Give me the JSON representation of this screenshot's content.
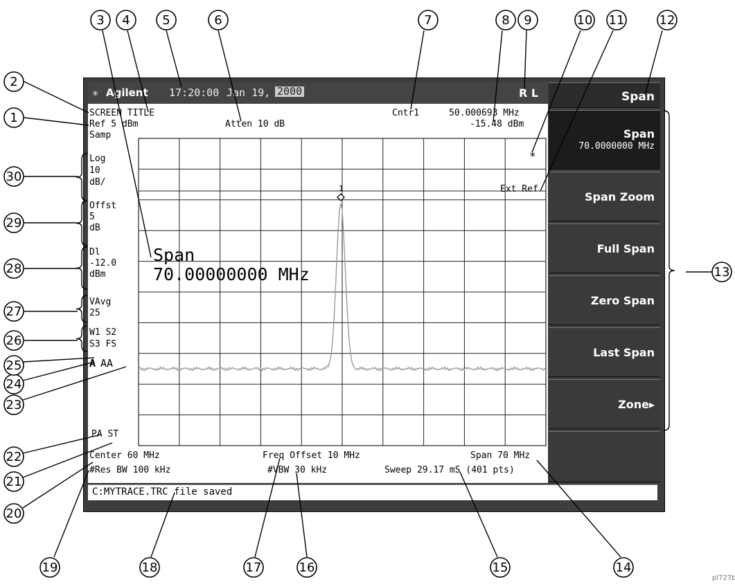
{
  "titlebar": {
    "brand": "Agilent",
    "time": "17:20:00",
    "date": "Jan 19,",
    "year": "2000",
    "rl": "R L"
  },
  "screen": {
    "title": "SCREEN TITLE",
    "ref": "Ref 5 dBm",
    "atten": "Atten 10 dB",
    "marker_label": "Cntr1",
    "marker_freq": "50.000693 MHz",
    "marker_amp": "-15.48 dBm",
    "detector": "Samp",
    "asterisk": "*",
    "ext_ref": "Ext Ref",
    "marker_number": "1",
    "scale": [
      "Log",
      "10",
      "dB/"
    ],
    "offset": [
      "Offst",
      "5",
      "dB"
    ],
    "display_line": [
      "Dl",
      "-12.0",
      "dBm"
    ],
    "vavg": [
      "VAvg",
      "25"
    ],
    "trace_status": [
      "W1  S2",
      "S3  FS"
    ],
    "trigger": "A",
    "aa": "AA",
    "pa_st": "PA ST",
    "active_function": {
      "name": "Span",
      "value": "70.00000000 MHz"
    },
    "center": "Center 60 MHz",
    "freq_offset": "Freq Offset 10 MHz",
    "span": "Span 70 MHz",
    "res_bw": "#Res BW 100 kHz",
    "vbw": "#VBW 30 kHz",
    "sweep": "Sweep 29.17 mS (401 pts)",
    "status_message": "C:MYTRACE.TRC file saved"
  },
  "softkeys": {
    "title": "Span",
    "items": [
      {
        "label": "Span",
        "sub": "70.0000000 MHz"
      },
      {
        "label": "Span Zoom"
      },
      {
        "label": "Full Span"
      },
      {
        "label": "Zero Span"
      },
      {
        "label": "Last Span"
      },
      {
        "label": "Zone▸"
      },
      {
        "label": ""
      }
    ]
  },
  "callouts": [
    "1",
    "2",
    "3",
    "4",
    "5",
    "6",
    "7",
    "8",
    "9",
    "10",
    "11",
    "12",
    "13",
    "14",
    "15",
    "16",
    "17",
    "18",
    "19",
    "20",
    "21",
    "22",
    "23",
    "24",
    "25",
    "26",
    "27",
    "28",
    "29",
    "30"
  ],
  "footnote": "pl727b",
  "colors": {
    "frame": "#3d3d3d",
    "screen": "#ffffff",
    "trace": "#9a9a9a",
    "grid": "#222222"
  }
}
